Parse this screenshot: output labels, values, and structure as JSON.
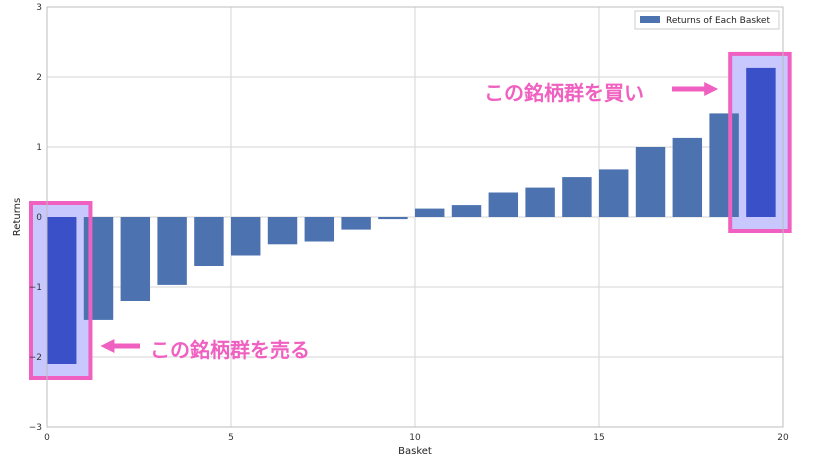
{
  "chart_data": {
    "type": "bar",
    "x": [
      0,
      1,
      2,
      3,
      4,
      5,
      6,
      7,
      8,
      9,
      10,
      11,
      12,
      13,
      14,
      15,
      16,
      17,
      18,
      19
    ],
    "values": [
      -2.1,
      -1.47,
      -1.2,
      -0.97,
      -0.7,
      -0.55,
      -0.39,
      -0.35,
      -0.18,
      -0.03,
      0.12,
      0.17,
      0.35,
      0.42,
      0.57,
      0.68,
      1.0,
      1.13,
      1.48,
      2.13
    ],
    "xlabel": "Basket",
    "ylabel": "Returns",
    "xlim": [
      0,
      20
    ],
    "ylim": [
      -3,
      3
    ],
    "xticks": [
      "0",
      "5",
      "10",
      "15",
      "20"
    ],
    "yticks": [
      "−3",
      "−2",
      "−1",
      "0",
      "1",
      "2",
      "3"
    ],
    "legend": {
      "label": "Returns of Each Basket",
      "position": "top-right"
    },
    "grid": true,
    "colors": {
      "bar": "#4c72b0",
      "highlight_bar": "#3a50c8",
      "highlight_border": "#f060c0",
      "highlight_fill": "#c8c8ff",
      "annotation": "#f060c0",
      "grid": "#d5d5d5",
      "axes_border": "#bdbdbd"
    },
    "annotations": [
      {
        "text": "この銘柄群を買い",
        "target_index": 19
      },
      {
        "text": "この銘柄群を売る",
        "target_index": 0
      }
    ]
  }
}
